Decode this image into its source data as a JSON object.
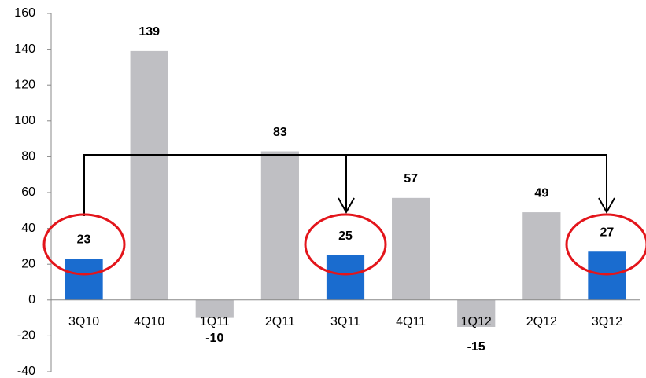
{
  "chart_data": {
    "type": "bar",
    "categories": [
      "3Q10",
      "4Q10",
      "1Q11",
      "2Q11",
      "3Q11",
      "4Q11",
      "1Q12",
      "2Q12",
      "3Q12"
    ],
    "values": [
      23,
      139,
      -10,
      83,
      25,
      57,
      -15,
      49,
      27
    ],
    "colors": [
      "#1a6ccf",
      "#bfbfc3",
      "#bfbfc3",
      "#bfbfc3",
      "#1a6ccf",
      "#bfbfc3",
      "#bfbfc3",
      "#bfbfc3",
      "#1a6ccf"
    ],
    "ylim": [
      -40,
      160
    ],
    "yticks": [
      -40,
      -20,
      0,
      20,
      40,
      60,
      80,
      100,
      120,
      140,
      160
    ],
    "grid": false
  }
}
